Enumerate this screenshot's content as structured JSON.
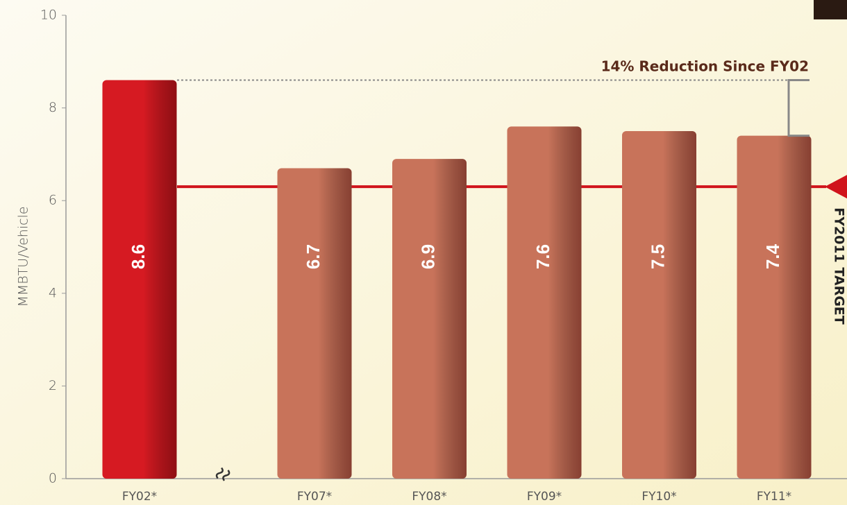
{
  "chart_data": {
    "type": "bar",
    "y_label": "MMBTU/Vehicle",
    "categories": [
      "FY02*",
      "FY07*",
      "FY08*",
      "FY09*",
      "FY10*",
      "FY11*"
    ],
    "values": [
      8.6,
      6.7,
      6.9,
      7.6,
      7.5,
      7.4
    ],
    "colors": [
      "#d61a22",
      "#c8735a",
      "#c8735a",
      "#c8735a",
      "#c8735a",
      "#c8735a"
    ],
    "ylim": [
      0,
      10
    ],
    "yticks": [
      0,
      2,
      4,
      6,
      8,
      10
    ],
    "target": {
      "value": 6.3,
      "label": "FY2011 TARGET",
      "color": "#d0141c"
    },
    "annotation": "14% Reduction Since FY02"
  }
}
